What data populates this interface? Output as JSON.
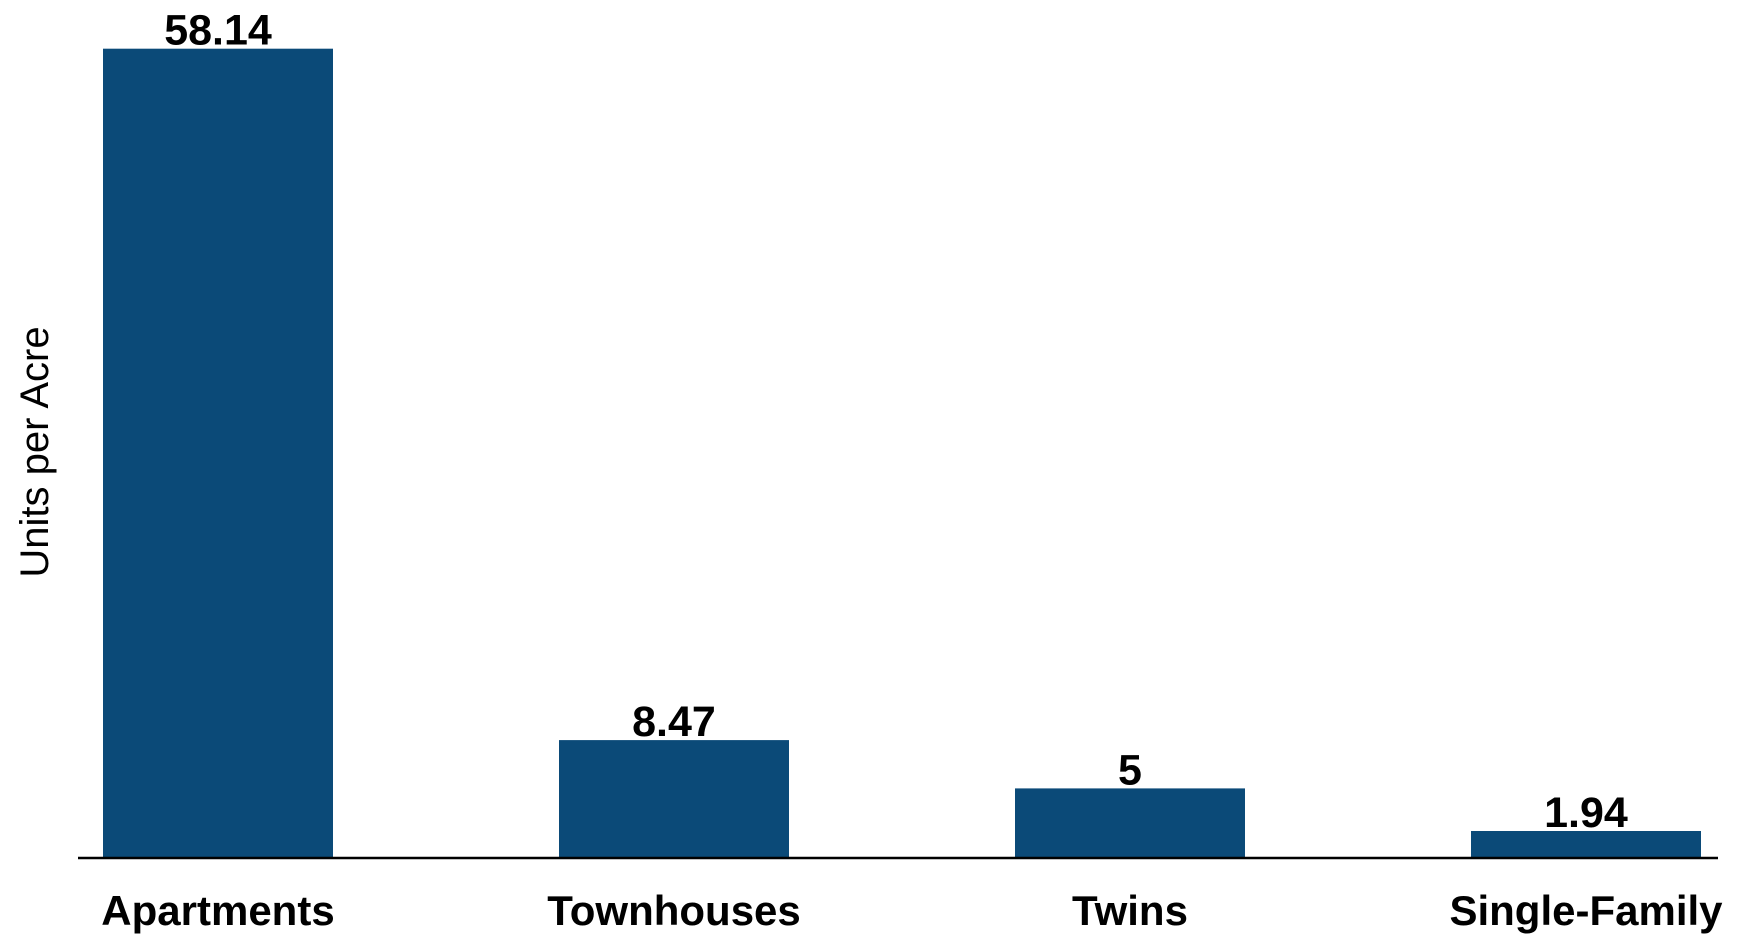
{
  "chart_data": {
    "type": "bar",
    "categories": [
      "Apartments",
      "Townhouses",
      "Twins",
      "Single-Family"
    ],
    "values": [
      58.14,
      8.47,
      5,
      1.94
    ],
    "data_labels": [
      "58.14",
      "8.47",
      "5",
      "1.94"
    ],
    "ylabel": "Units per Acre",
    "xlabel": "",
    "title": "",
    "grid": false,
    "legend": "none",
    "bar_color": "#0b4a78",
    "axis_color": "#000000"
  }
}
